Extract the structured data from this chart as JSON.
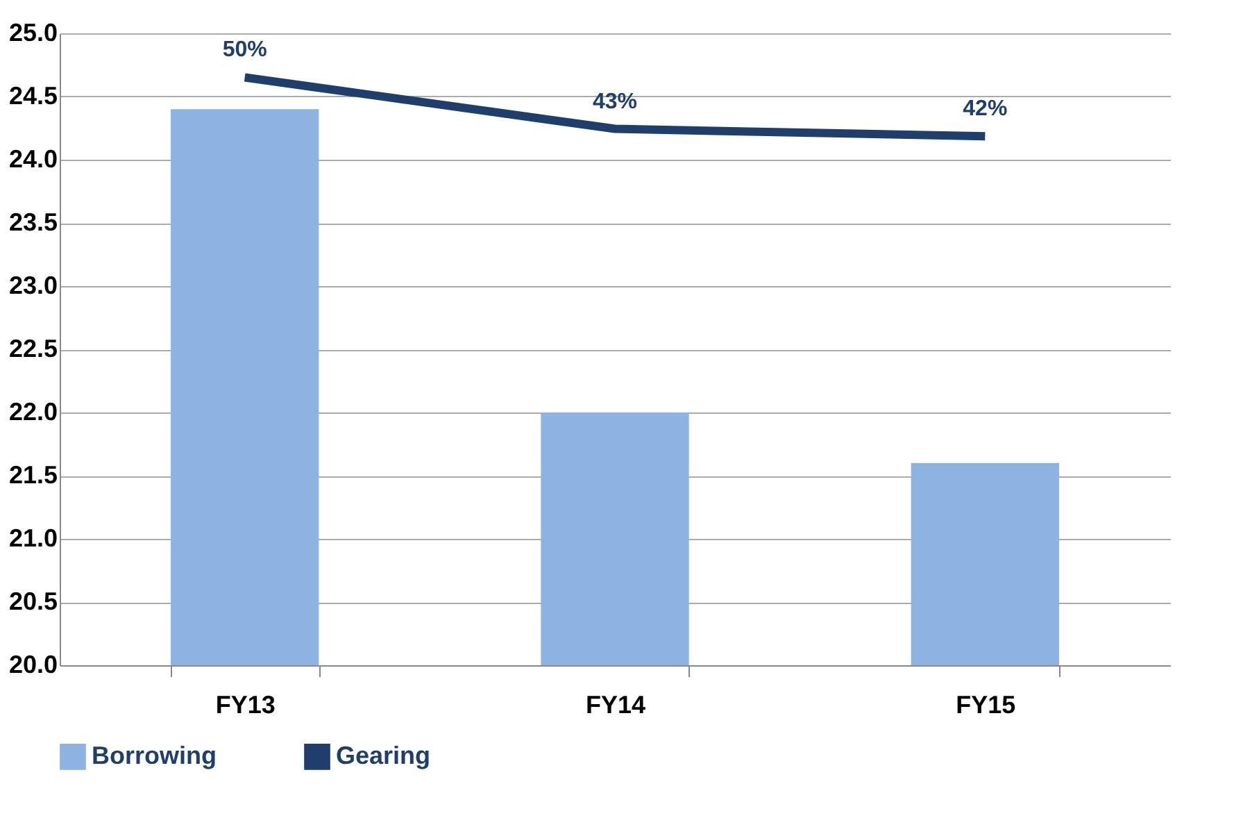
{
  "chart_data": {
    "type": "bar",
    "categories": [
      "FY13",
      "FY14",
      "FY15"
    ],
    "series": [
      {
        "name": "Borrowing",
        "type": "bar",
        "color": "#8db3e2",
        "values": [
          24.4,
          22.0,
          21.6
        ]
      },
      {
        "name": "Gearing",
        "type": "line",
        "axis": "y2",
        "color": "#1f3e6b",
        "values": [
          50,
          43,
          42
        ],
        "value_labels": [
          "50%",
          "43%",
          "42%"
        ]
      }
    ],
    "ylim": [
      20,
      25
    ],
    "yticks": [
      {
        "value": 20,
        "label": "20.0"
      },
      {
        "value": 20.5,
        "label": "20.5"
      },
      {
        "value": 21,
        "label": "21.0"
      },
      {
        "value": 21.5,
        "label": "21.5"
      },
      {
        "value": 22,
        "label": "22.0"
      },
      {
        "value": 22.5,
        "label": "22.5"
      },
      {
        "value": 23,
        "label": "23.0"
      },
      {
        "value": 23.5,
        "label": "23.5"
      },
      {
        "value": 24,
        "label": "24.0"
      },
      {
        "value": 24.5,
        "label": "24.5"
      },
      {
        "value": 25,
        "label": "25.0"
      }
    ],
    "y2lim": [
      -30,
      56
    ],
    "grid": "y",
    "legend": "bottom"
  }
}
